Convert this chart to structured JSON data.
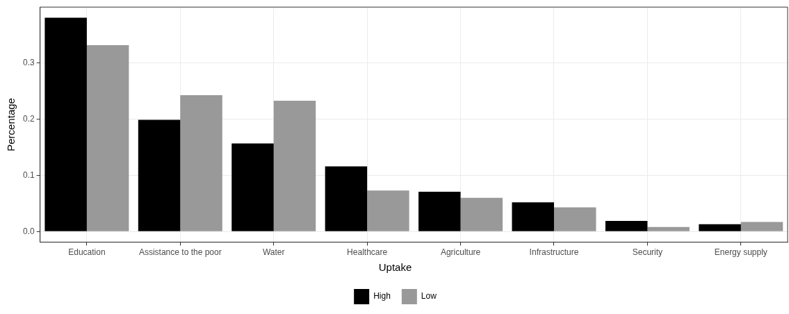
{
  "chart_data": {
    "type": "bar",
    "ylabel": "Percentage",
    "legend_title": "Uptake",
    "legend": "bottom",
    "categories": [
      "Education",
      "Assistance to the poor",
      "Water",
      "Healthcare",
      "Agriculture",
      "Infrastructure",
      "Security",
      "Energy supply"
    ],
    "series": [
      {
        "name": "High",
        "color": "#000000",
        "values": [
          0.381,
          0.199,
          0.157,
          0.116,
          0.071,
          0.052,
          0.019,
          0.013
        ]
      },
      {
        "name": "Low",
        "color": "#999999",
        "values": [
          0.332,
          0.243,
          0.233,
          0.073,
          0.06,
          0.043,
          0.008,
          0.017
        ]
      }
    ],
    "ylim": [
      -0.019,
      0.4
    ],
    "yticks": [
      {
        "value": 0,
        "label": "0.0"
      },
      {
        "value": 0.1,
        "label": "0.1"
      },
      {
        "value": 0.2,
        "label": "0.2"
      },
      {
        "value": 0.3,
        "label": "0.3"
      }
    ],
    "grid": true
  }
}
